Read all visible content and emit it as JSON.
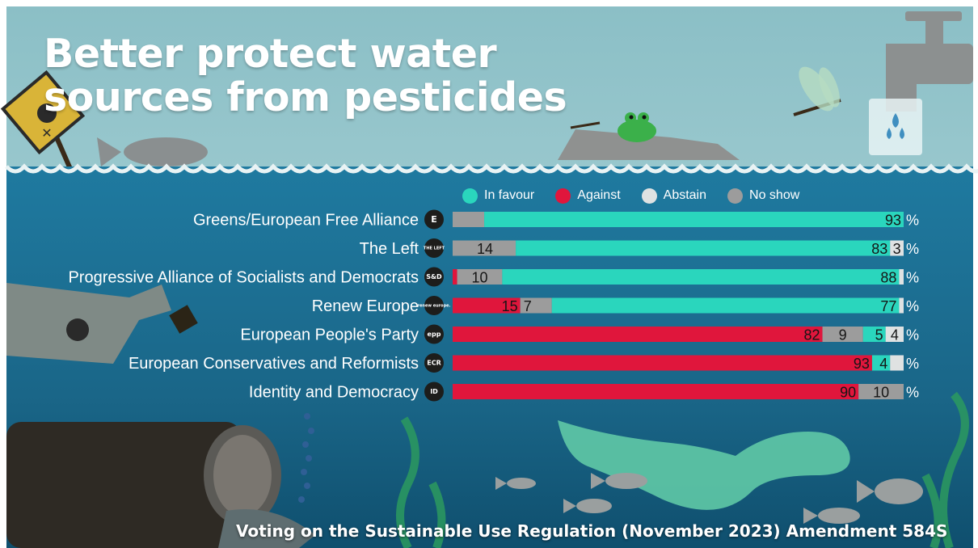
{
  "title": "Better protect water sources from pesticides",
  "caption": "Voting on the Sustainable Use Regulation (November 2023) Amendment 584S",
  "colors": {
    "in_favour": "#2ad6bd",
    "against": "#e0163c",
    "abstain": "#dfe2e2",
    "no_show": "#9c9c9c",
    "text": "#ffffff",
    "bar_text": "#151515",
    "water": "#1b6c8f",
    "sky": "#9ecdd4"
  },
  "legend": [
    {
      "key": "in_favour",
      "label": "In favour"
    },
    {
      "key": "against",
      "label": "Against"
    },
    {
      "key": "abstain",
      "label": "Abstain"
    },
    {
      "key": "no_show",
      "label": "No show"
    }
  ],
  "chart_data": {
    "type": "bar",
    "orientation": "horizontal",
    "stacked": true,
    "unit": "%",
    "categories": [
      "Greens/European Free Alliance",
      "The Left",
      "Progressive Alliance of Socialists and Democrats",
      "Renew Europe",
      "European People's Party",
      "European Conservatives and Reformists",
      "Identity and Democracy"
    ],
    "party_logos": [
      "E",
      "THE LEFT",
      "S&D",
      "renew europe.",
      "epp",
      "ECR",
      "ID"
    ],
    "series": [
      {
        "name": "Against",
        "key": "against",
        "values": [
          0,
          0,
          1,
          15,
          82,
          93,
          90
        ],
        "labels": [
          "",
          "",
          "",
          "15",
          "82",
          "93",
          "90"
        ]
      },
      {
        "name": "No show",
        "key": "no_show",
        "values": [
          7,
          14,
          10,
          7,
          9,
          0,
          10
        ],
        "labels": [
          "7",
          "14",
          "10",
          "7",
          "9",
          "",
          "10"
        ]
      },
      {
        "name": "In favour",
        "key": "in_favour",
        "values": [
          93,
          83,
          88,
          77,
          5,
          4,
          0
        ],
        "labels": [
          "93",
          "83",
          "88",
          "77",
          "5",
          "4",
          ""
        ]
      },
      {
        "name": "Abstain",
        "key": "abstain",
        "values": [
          0,
          3,
          1,
          1,
          4,
          3,
          0
        ],
        "labels": [
          "",
          "3",
          "",
          "",
          "4",
          "",
          ""
        ]
      }
    ],
    "xlim": [
      0,
      100
    ],
    "legend_position": "top"
  }
}
